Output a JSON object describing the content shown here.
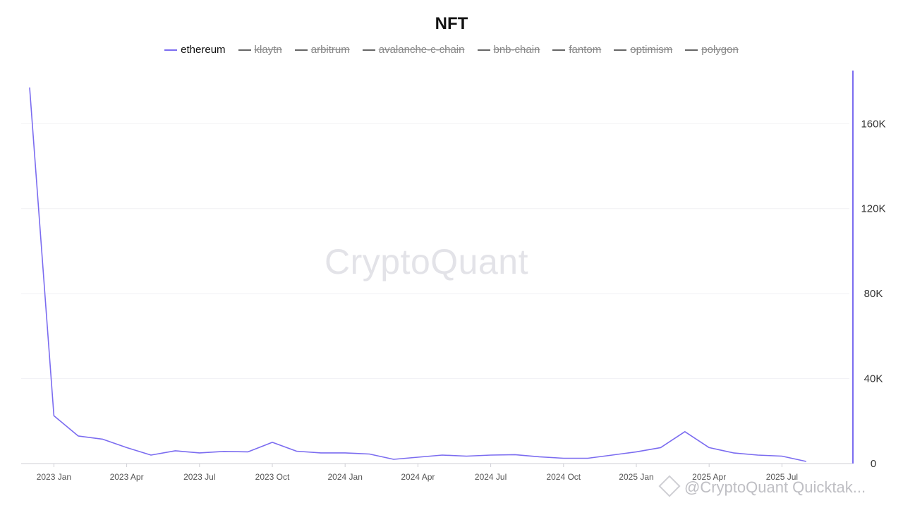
{
  "chart_data": {
    "type": "line",
    "title": "NFT",
    "legend": {
      "placement": "top-center",
      "items": [
        {
          "name": "ethereum",
          "active": true
        },
        {
          "name": "klaytn",
          "active": false
        },
        {
          "name": "arbitrum",
          "active": false
        },
        {
          "name": "avalanche-c-chain",
          "active": false
        },
        {
          "name": "bnb-chain",
          "active": false
        },
        {
          "name": "fantom",
          "active": false
        },
        {
          "name": "optimism",
          "active": false
        },
        {
          "name": "polygon",
          "active": false
        }
      ]
    },
    "x": [
      "2022-12",
      "2023-01",
      "2023-02",
      "2023-03",
      "2023-04",
      "2023-05",
      "2023-06",
      "2023-07",
      "2023-08",
      "2023-09",
      "2023-10",
      "2023-11",
      "2023-12",
      "2024-01",
      "2024-02",
      "2024-03",
      "2024-04",
      "2024-05",
      "2024-06",
      "2024-07",
      "2024-08",
      "2024-09",
      "2024-10",
      "2024-11",
      "2024-12",
      "2025-01",
      "2025-02",
      "2025-03",
      "2025-04",
      "2025-05",
      "2025-06",
      "2025-07",
      "2025-08"
    ],
    "series": [
      {
        "name": "ethereum",
        "color": "#7b6cf0",
        "values": [
          177000,
          22500,
          13000,
          11500,
          7500,
          4000,
          6000,
          5000,
          5700,
          5500,
          10000,
          5800,
          5000,
          5000,
          4500,
          2000,
          3000,
          4000,
          3500,
          4000,
          4200,
          3200,
          2500,
          2500,
          4000,
          5500,
          7500,
          15000,
          7500,
          5000,
          4000,
          3500,
          1000
        ]
      }
    ],
    "x_ticks": [
      "2023 Jan",
      "2023 Apr",
      "2023 Jul",
      "2023 Oct",
      "2024 Jan",
      "2024 Apr",
      "2024 Jul",
      "2024 Oct",
      "2025 Jan",
      "2025 Apr",
      "2025 Jul"
    ],
    "y_ticks": [
      0,
      40000,
      80000,
      120000,
      160000
    ],
    "y_tick_labels": [
      "0",
      "40K",
      "80K",
      "120K",
      "160K"
    ],
    "ylim": [
      0,
      185000
    ],
    "y_axis_side": "right",
    "grid": true
  },
  "watermark": "CryptoQuant",
  "credit": "@CryptoQuant Quicktak..."
}
